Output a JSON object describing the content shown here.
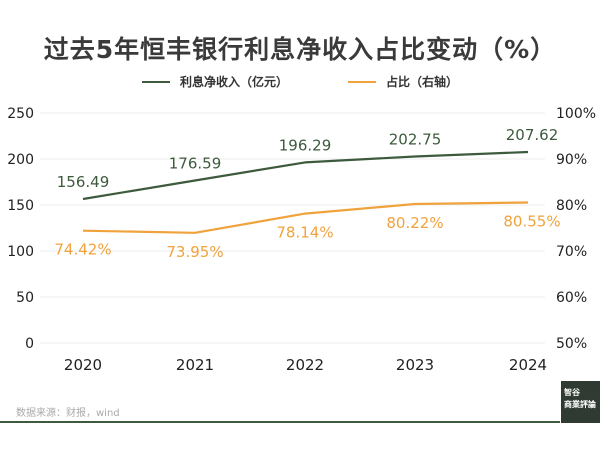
{
  "chart_data": {
    "type": "line",
    "title": "过去5年恒丰银行利息净收入占比变动（%）",
    "categories": [
      "2020",
      "2021",
      "2022",
      "2023",
      "2024"
    ],
    "series": [
      {
        "name": "利息净收入（亿元）",
        "axis": "left",
        "color": "#3d5a3d",
        "values": [
          156.49,
          176.59,
          196.29,
          202.75,
          207.62
        ],
        "labels": [
          "156.49",
          "176.59",
          "196.29",
          "202.75",
          "207.62"
        ]
      },
      {
        "name": "占比（右轴）",
        "axis": "right",
        "color": "#f0a23c",
        "values": [
          74.42,
          73.95,
          78.14,
          80.22,
          80.55
        ],
        "labels": [
          "74.42%",
          "73.95%",
          "78.14%",
          "80.22%",
          "80.55%"
        ]
      }
    ],
    "left_axis": {
      "range": [
        0,
        250
      ],
      "ticks": [
        "0",
        "50",
        "100",
        "150",
        "200",
        "250"
      ]
    },
    "right_axis": {
      "range": [
        50,
        100
      ],
      "ticks": [
        "50%",
        "60%",
        "70%",
        "80%",
        "90%",
        "100%"
      ]
    },
    "grid": true,
    "legend_position": "top-center"
  },
  "footer": {
    "source": "数据来源：财报，wind",
    "logo_line1": "智谷",
    "logo_line2": "商業評論"
  }
}
